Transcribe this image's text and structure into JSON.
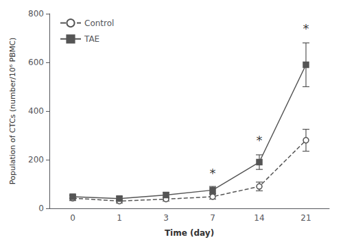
{
  "chart_data": {
    "type": "line",
    "xlabel": "Time (day)",
    "ylabel": "Population of CTCs (number/10⁶ PBMC)",
    "categories": [
      "0",
      "1",
      "3",
      "7",
      "14",
      "21"
    ],
    "series": [
      {
        "name": "Control",
        "color": "#555555",
        "line_style": "dashed",
        "marker": "open-circle",
        "values": [
          42,
          30,
          38,
          48,
          90,
          280
        ],
        "yerr": [
          10,
          8,
          8,
          10,
          18,
          45
        ]
      },
      {
        "name": "TAE",
        "color": "#555555",
        "line_style": "solid",
        "marker": "filled-square",
        "values": [
          48,
          40,
          55,
          75,
          190,
          590
        ],
        "yerr": [
          8,
          8,
          10,
          15,
          30,
          90
        ]
      }
    ],
    "annotations": [
      {
        "text": "*",
        "x": "7",
        "y": 120
      },
      {
        "text": "*",
        "x": "14",
        "y": 255
      },
      {
        "text": "*",
        "x": "21",
        "y": 715
      }
    ],
    "ylim": [
      0,
      800
    ],
    "yticks": [
      0,
      200,
      400,
      600,
      800
    ],
    "grid": false,
    "legend": "upper left"
  }
}
